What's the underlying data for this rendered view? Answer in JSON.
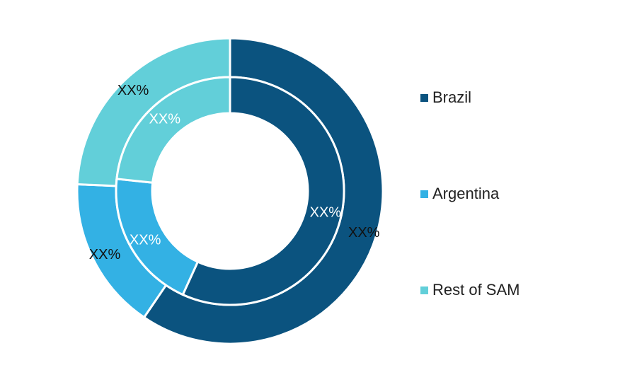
{
  "chart_data": {
    "type": "pie",
    "variant": "double-donut",
    "categories": [
      "Brazil",
      "Argentina",
      "Rest of SAM"
    ],
    "colors": [
      "#0b537f",
      "#33b1e4",
      "#62cfd9"
    ],
    "series": [
      {
        "ring": "outer",
        "values": [
          59.5,
          16.2,
          24.3
        ],
        "labels": [
          "XX%",
          "XX%",
          "XX%"
        ]
      },
      {
        "ring": "inner",
        "values": [
          56.8,
          19.9,
          23.3
        ],
        "labels": [
          "XX%",
          "XX%",
          "XX%"
        ]
      }
    ],
    "legend_position": "right"
  },
  "legend": {
    "items": [
      {
        "label": "Brazil",
        "color": "#0b537f"
      },
      {
        "label": "Argentina",
        "color": "#33b1e4"
      },
      {
        "label": "Rest of SAM",
        "color": "#62cfd9"
      }
    ]
  }
}
